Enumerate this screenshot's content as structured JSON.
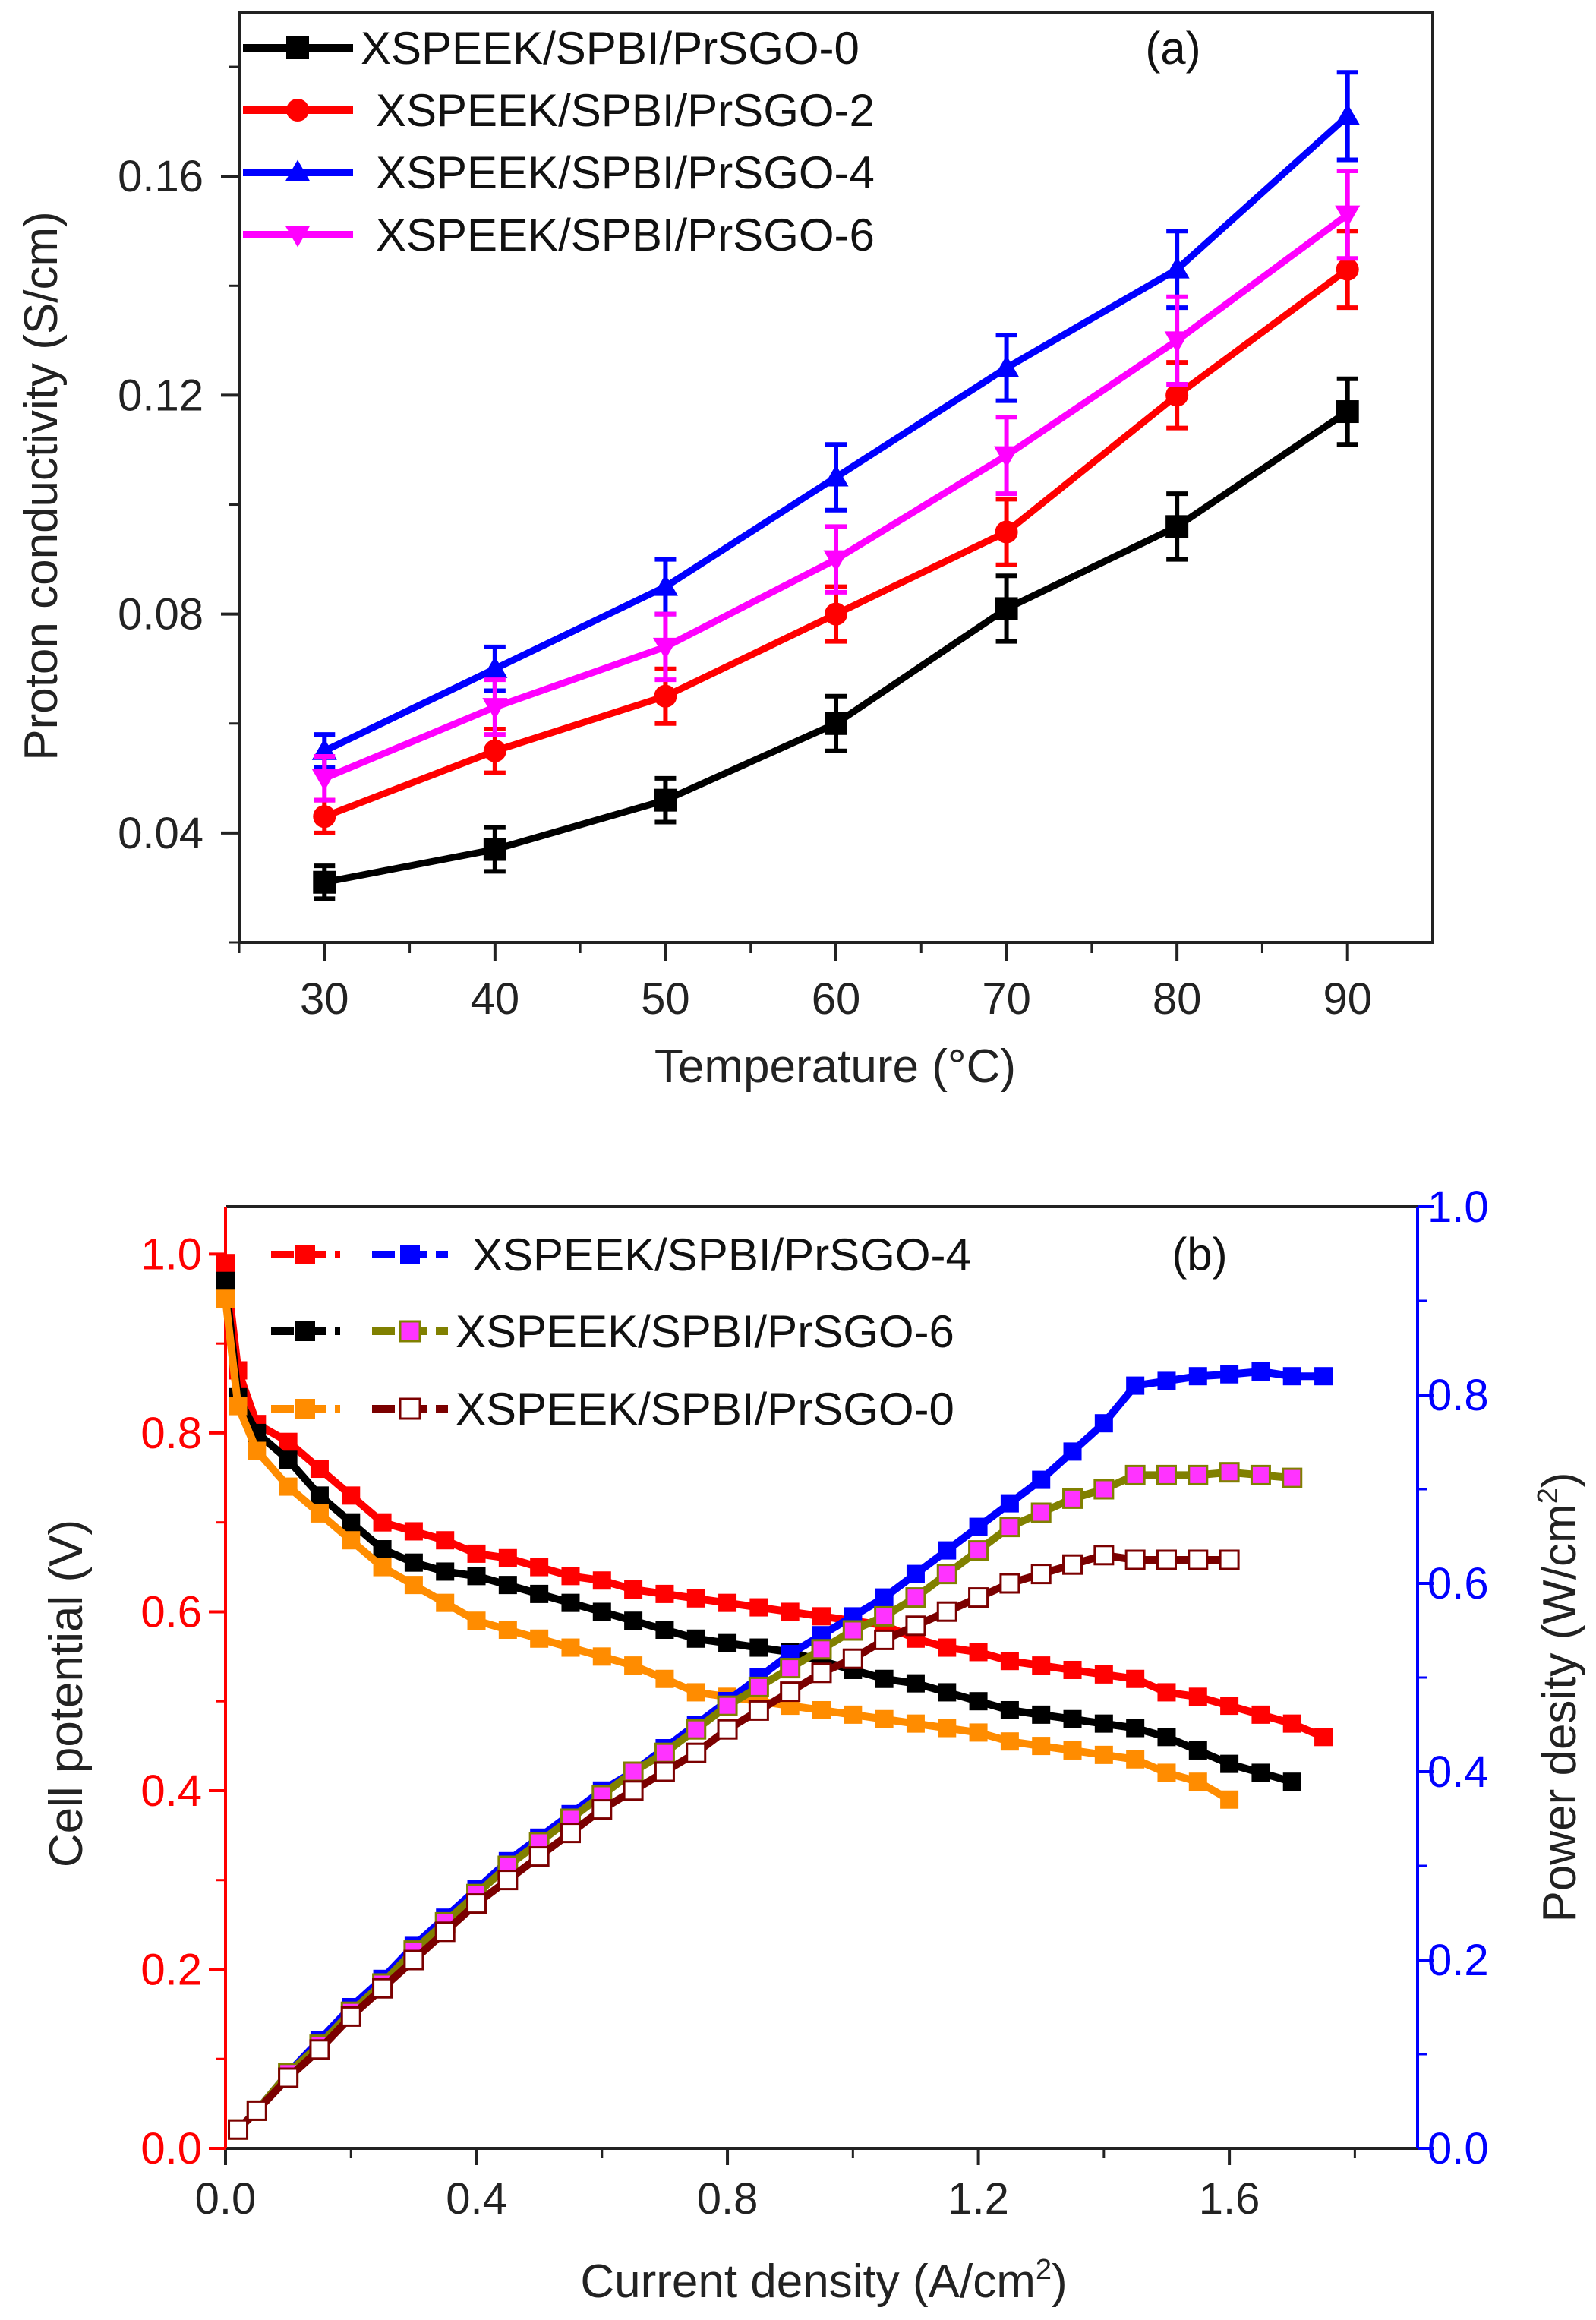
{
  "chart_data": [
    {
      "type": "line",
      "panel_label": "(a)",
      "xlabel": "Temperature (°C)",
      "ylabel": "Proton conductivity (S/cm)",
      "xlim": [
        25,
        95
      ],
      "ylim": [
        0.02,
        0.19
      ],
      "xticks": [
        30,
        40,
        50,
        60,
        70,
        80,
        90
      ],
      "xtick_labels": [
        "30",
        "40",
        "50",
        "60",
        "70",
        "80",
        "90"
      ],
      "yticks": [
        0.04,
        0.08,
        0.12,
        0.16
      ],
      "ytick_labels": [
        "0.04",
        "0.08",
        "0.12",
        "0.16"
      ],
      "grid": false,
      "legend_position": "top-left",
      "x": [
        30,
        40,
        50,
        60,
        70,
        80,
        90
      ],
      "series": [
        {
          "name": "XSPEEK/SPBI/PrSGO-0",
          "color": "#000000",
          "marker": "square",
          "values": [
            0.031,
            0.037,
            0.046,
            0.06,
            0.081,
            0.096,
            0.117
          ],
          "errors": [
            0.003,
            0.004,
            0.004,
            0.005,
            0.006,
            0.006,
            0.006
          ]
        },
        {
          "name": "XSPEEK/SPBI/PrSGO-2",
          "color": "#ff0000",
          "marker": "circle",
          "values": [
            0.043,
            0.055,
            0.065,
            0.08,
            0.095,
            0.12,
            0.143
          ],
          "errors": [
            0.003,
            0.004,
            0.005,
            0.005,
            0.006,
            0.006,
            0.007
          ]
        },
        {
          "name": "XSPEEK/SPBI/PrSGO-4",
          "color": "#0000ff",
          "marker": "triangle-up",
          "values": [
            0.055,
            0.07,
            0.085,
            0.105,
            0.125,
            0.143,
            0.171
          ],
          "errors": [
            0.003,
            0.004,
            0.005,
            0.006,
            0.006,
            0.007,
            0.008
          ]
        },
        {
          "name": "XSPEEK/SPBI/PrSGO-6",
          "color": "#ff00ff",
          "marker": "triangle-down",
          "values": [
            0.05,
            0.063,
            0.074,
            0.09,
            0.109,
            0.13,
            0.153
          ],
          "errors": [
            0.004,
            0.005,
            0.006,
            0.006,
            0.007,
            0.008,
            0.008
          ]
        }
      ]
    },
    {
      "type": "line",
      "panel_label": "(b)",
      "xlabel": "Current density (A/cm",
      "xlabel_sup": "2",
      "xlabel_end": ")",
      "ylabel": "Cell potential (V)",
      "y2label": "Power desity (W/cm",
      "y2label_sup": "2",
      "y2label_end": ")",
      "xlim": [
        0,
        1.9
      ],
      "ylim": [
        0,
        1.053
      ],
      "y2lim": [
        0,
        1.0
      ],
      "left_axis_color": "#ff0000",
      "right_axis_color": "#0000ff",
      "xticks": [
        0,
        0.4,
        0.8,
        1.2,
        1.6
      ],
      "xtick_labels": [
        "0.0",
        "0.4",
        "0.8",
        "1.2",
        "1.6"
      ],
      "yticks": [
        0,
        0.2,
        0.4,
        0.6,
        0.8,
        1.0
      ],
      "ytick_labels": [
        "0.0",
        "0.2",
        "0.4",
        "0.6",
        "0.8",
        "1.0"
      ],
      "y2ticks": [
        0,
        0.2,
        0.4,
        0.6,
        0.8,
        1.0
      ],
      "y2tick_labels": [
        "0.0",
        "0.2",
        "0.4",
        "0.6",
        "0.8",
        "1.0"
      ],
      "grid": false,
      "legend_position": "top-left",
      "legend": [
        {
          "label": "XSPEEK/SPBI/PrSGO-4",
          "potential_series": 0,
          "power_series": 3
        },
        {
          "label": "XSPEEK/SPBI/PrSGO-6",
          "potential_series": 1,
          "power_series": 4
        },
        {
          "label": "XSPEEK/SPBI/PrSGO-0",
          "potential_series": 2,
          "power_series": 5
        }
      ],
      "series": [
        {
          "name": "PrSGO-4 cell potential",
          "axis": "left",
          "color": "#ff0000",
          "marker": "square",
          "x": [
            0,
            0.02,
            0.05,
            0.1,
            0.15,
            0.2,
            0.25,
            0.3,
            0.35,
            0.4,
            0.45,
            0.5,
            0.55,
            0.6,
            0.65,
            0.7,
            0.75,
            0.8,
            0.85,
            0.9,
            0.95,
            1.0,
            1.05,
            1.1,
            1.15,
            1.2,
            1.25,
            1.3,
            1.35,
            1.4,
            1.45,
            1.5,
            1.55,
            1.6,
            1.65,
            1.7,
            1.75
          ],
          "values": [
            0.99,
            0.87,
            0.81,
            0.79,
            0.76,
            0.73,
            0.7,
            0.69,
            0.68,
            0.665,
            0.66,
            0.65,
            0.64,
            0.635,
            0.625,
            0.62,
            0.615,
            0.61,
            0.605,
            0.6,
            0.595,
            0.59,
            0.585,
            0.57,
            0.56,
            0.555,
            0.545,
            0.54,
            0.535,
            0.53,
            0.525,
            0.51,
            0.505,
            0.495,
            0.485,
            0.475,
            0.46
          ]
        },
        {
          "name": "PrSGO-6 cell potential",
          "axis": "left",
          "color": "#000000",
          "marker": "square",
          "x": [
            0,
            0.02,
            0.05,
            0.1,
            0.15,
            0.2,
            0.25,
            0.3,
            0.35,
            0.4,
            0.45,
            0.5,
            0.55,
            0.6,
            0.65,
            0.7,
            0.75,
            0.8,
            0.85,
            0.9,
            0.95,
            1.0,
            1.05,
            1.1,
            1.15,
            1.2,
            1.25,
            1.3,
            1.35,
            1.4,
            1.45,
            1.5,
            1.55,
            1.6,
            1.65,
            1.7
          ],
          "values": [
            0.97,
            0.84,
            0.8,
            0.77,
            0.73,
            0.7,
            0.67,
            0.655,
            0.645,
            0.64,
            0.63,
            0.62,
            0.61,
            0.6,
            0.59,
            0.58,
            0.57,
            0.565,
            0.56,
            0.555,
            0.545,
            0.535,
            0.525,
            0.52,
            0.51,
            0.5,
            0.49,
            0.485,
            0.48,
            0.475,
            0.47,
            0.46,
            0.445,
            0.43,
            0.42,
            0.41
          ]
        },
        {
          "name": "PrSGO-0 cell potential",
          "axis": "left",
          "color": "#ff8c00",
          "marker": "square",
          "x": [
            0,
            0.02,
            0.05,
            0.1,
            0.15,
            0.2,
            0.25,
            0.3,
            0.35,
            0.4,
            0.45,
            0.5,
            0.55,
            0.6,
            0.65,
            0.7,
            0.75,
            0.8,
            0.85,
            0.9,
            0.95,
            1.0,
            1.05,
            1.1,
            1.15,
            1.2,
            1.25,
            1.3,
            1.35,
            1.4,
            1.45,
            1.5,
            1.55,
            1.6
          ],
          "values": [
            0.95,
            0.83,
            0.78,
            0.74,
            0.71,
            0.68,
            0.65,
            0.63,
            0.61,
            0.59,
            0.58,
            0.57,
            0.56,
            0.55,
            0.54,
            0.525,
            0.51,
            0.505,
            0.5,
            0.495,
            0.49,
            0.485,
            0.48,
            0.475,
            0.47,
            0.465,
            0.455,
            0.45,
            0.445,
            0.44,
            0.435,
            0.42,
            0.41,
            0.39
          ]
        },
        {
          "name": "PrSGO-4 power density",
          "axis": "right",
          "color": "#0000ff",
          "marker": "square",
          "x": [
            0.02,
            0.05,
            0.1,
            0.15,
            0.2,
            0.25,
            0.3,
            0.35,
            0.4,
            0.45,
            0.5,
            0.55,
            0.6,
            0.65,
            0.7,
            0.75,
            0.8,
            0.85,
            0.9,
            0.95,
            1.0,
            1.05,
            1.1,
            1.15,
            1.2,
            1.25,
            1.3,
            1.35,
            1.4,
            1.45,
            1.5,
            1.55,
            1.6,
            1.65,
            1.7,
            1.75
          ],
          "values": [
            0.02,
            0.04,
            0.08,
            0.115,
            0.15,
            0.18,
            0.215,
            0.245,
            0.275,
            0.305,
            0.33,
            0.355,
            0.38,
            0.4,
            0.425,
            0.45,
            0.475,
            0.5,
            0.525,
            0.545,
            0.565,
            0.585,
            0.61,
            0.635,
            0.66,
            0.685,
            0.71,
            0.74,
            0.77,
            0.81,
            0.815,
            0.82,
            0.822,
            0.825,
            0.82,
            0.82
          ]
        },
        {
          "name": "PrSGO-6 power density",
          "axis": "right",
          "color": "#808000",
          "marker": "square-filled-magenta",
          "fill": "#ff33ff",
          "x": [
            0.02,
            0.05,
            0.1,
            0.15,
            0.2,
            0.25,
            0.3,
            0.35,
            0.4,
            0.45,
            0.5,
            0.55,
            0.6,
            0.65,
            0.7,
            0.75,
            0.8,
            0.85,
            0.9,
            0.95,
            1.0,
            1.05,
            1.1,
            1.15,
            1.2,
            1.25,
            1.3,
            1.35,
            1.4,
            1.45,
            1.5,
            1.55,
            1.6,
            1.65,
            1.7
          ],
          "values": [
            0.02,
            0.04,
            0.08,
            0.11,
            0.145,
            0.175,
            0.21,
            0.24,
            0.27,
            0.3,
            0.325,
            0.35,
            0.375,
            0.4,
            0.42,
            0.445,
            0.47,
            0.49,
            0.51,
            0.53,
            0.55,
            0.565,
            0.585,
            0.61,
            0.635,
            0.66,
            0.675,
            0.69,
            0.7,
            0.715,
            0.715,
            0.715,
            0.718,
            0.715,
            0.712
          ]
        },
        {
          "name": "PrSGO-0 power density",
          "axis": "right",
          "color": "#7b0000",
          "marker": "square-open",
          "fill": "#ffffff",
          "x": [
            0.02,
            0.05,
            0.1,
            0.15,
            0.2,
            0.25,
            0.3,
            0.35,
            0.4,
            0.45,
            0.5,
            0.55,
            0.6,
            0.65,
            0.7,
            0.75,
            0.8,
            0.85,
            0.9,
            0.95,
            1.0,
            1.05,
            1.1,
            1.15,
            1.2,
            1.25,
            1.3,
            1.35,
            1.4,
            1.45,
            1.5,
            1.55,
            1.6
          ],
          "values": [
            0.02,
            0.04,
            0.075,
            0.105,
            0.14,
            0.17,
            0.2,
            0.23,
            0.26,
            0.285,
            0.31,
            0.335,
            0.36,
            0.38,
            0.4,
            0.42,
            0.445,
            0.465,
            0.485,
            0.505,
            0.52,
            0.54,
            0.555,
            0.57,
            0.585,
            0.6,
            0.61,
            0.62,
            0.63,
            0.625,
            0.625,
            0.625,
            0.625
          ]
        }
      ]
    }
  ]
}
